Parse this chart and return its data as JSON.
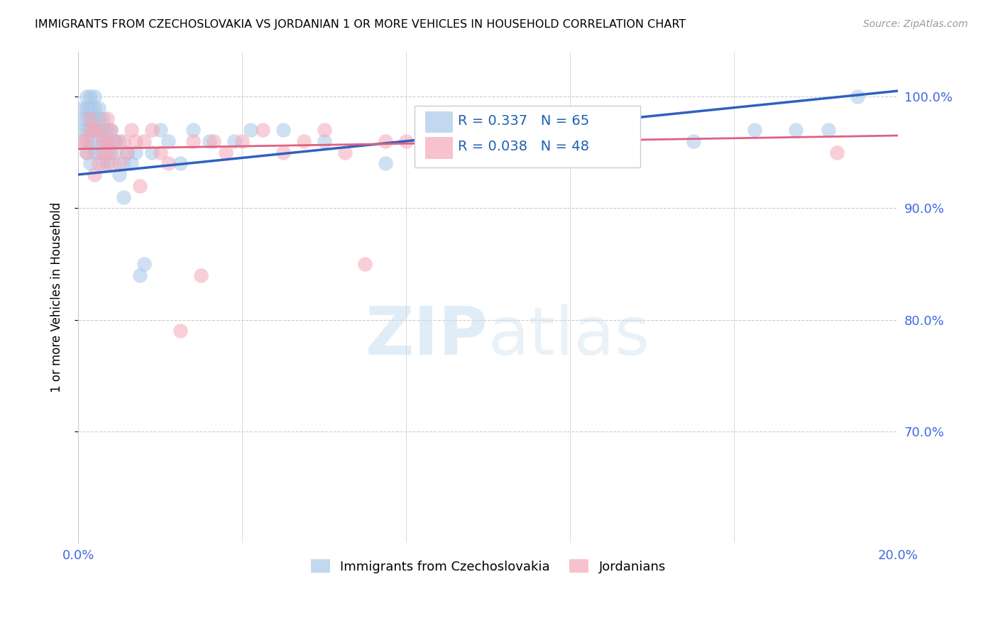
{
  "title": "IMMIGRANTS FROM CZECHOSLOVAKIA VS JORDANIAN 1 OR MORE VEHICLES IN HOUSEHOLD CORRELATION CHART",
  "source": "Source: ZipAtlas.com",
  "ylabel": "1 or more Vehicles in Household",
  "xlim": [
    0.0,
    0.2
  ],
  "ylim": [
    0.6,
    1.04
  ],
  "yticks": [
    0.7,
    0.8,
    0.9,
    1.0
  ],
  "ytick_labels": [
    "70.0%",
    "80.0%",
    "90.0%",
    "100.0%"
  ],
  "xticks": [
    0.0,
    0.04,
    0.08,
    0.12,
    0.16,
    0.2
  ],
  "blue_R": 0.337,
  "blue_N": 65,
  "pink_R": 0.038,
  "pink_N": 48,
  "blue_color": "#a8c8e8",
  "pink_color": "#f4a8b8",
  "blue_line_color": "#3060c0",
  "pink_line_color": "#e06080",
  "legend_label_blue": "Immigrants from Czechoslovakia",
  "legend_label_pink": "Jordanians",
  "blue_scatter_x": [
    0.001,
    0.001,
    0.001,
    0.001,
    0.002,
    0.002,
    0.002,
    0.002,
    0.002,
    0.003,
    0.003,
    0.003,
    0.003,
    0.003,
    0.003,
    0.004,
    0.004,
    0.004,
    0.004,
    0.004,
    0.004,
    0.005,
    0.005,
    0.005,
    0.005,
    0.006,
    0.006,
    0.006,
    0.006,
    0.007,
    0.007,
    0.007,
    0.008,
    0.008,
    0.008,
    0.009,
    0.009,
    0.01,
    0.01,
    0.011,
    0.011,
    0.012,
    0.013,
    0.014,
    0.015,
    0.016,
    0.018,
    0.02,
    0.022,
    0.025,
    0.028,
    0.032,
    0.038,
    0.042,
    0.05,
    0.06,
    0.075,
    0.09,
    0.11,
    0.13,
    0.15,
    0.165,
    0.175,
    0.183,
    0.19
  ],
  "blue_scatter_y": [
    0.96,
    0.97,
    0.98,
    0.99,
    0.95,
    0.97,
    0.98,
    0.99,
    1.0,
    0.94,
    0.96,
    0.97,
    0.98,
    0.99,
    1.0,
    0.95,
    0.96,
    0.97,
    0.98,
    0.99,
    1.0,
    0.95,
    0.97,
    0.98,
    0.99,
    0.94,
    0.96,
    0.97,
    0.98,
    0.95,
    0.96,
    0.97,
    0.94,
    0.96,
    0.97,
    0.95,
    0.96,
    0.93,
    0.96,
    0.91,
    0.94,
    0.95,
    0.94,
    0.95,
    0.84,
    0.85,
    0.95,
    0.97,
    0.96,
    0.94,
    0.97,
    0.96,
    0.96,
    0.97,
    0.97,
    0.96,
    0.94,
    0.96,
    0.96,
    0.95,
    0.96,
    0.97,
    0.97,
    0.97,
    1.0
  ],
  "pink_scatter_x": [
    0.001,
    0.002,
    0.002,
    0.003,
    0.003,
    0.004,
    0.004,
    0.005,
    0.005,
    0.006,
    0.006,
    0.007,
    0.007,
    0.007,
    0.008,
    0.008,
    0.009,
    0.01,
    0.011,
    0.012,
    0.013,
    0.014,
    0.015,
    0.016,
    0.018,
    0.02,
    0.022,
    0.025,
    0.028,
    0.03,
    0.033,
    0.036,
    0.04,
    0.045,
    0.05,
    0.055,
    0.06,
    0.065,
    0.07,
    0.075,
    0.08,
    0.085,
    0.09,
    0.095,
    0.1,
    0.11,
    0.13,
    0.185
  ],
  "pink_scatter_y": [
    0.96,
    0.95,
    0.96,
    0.97,
    0.98,
    0.93,
    0.97,
    0.94,
    0.97,
    0.95,
    0.96,
    0.94,
    0.96,
    0.98,
    0.95,
    0.97,
    0.96,
    0.94,
    0.96,
    0.95,
    0.97,
    0.96,
    0.92,
    0.96,
    0.97,
    0.95,
    0.94,
    0.79,
    0.96,
    0.84,
    0.96,
    0.95,
    0.96,
    0.97,
    0.95,
    0.96,
    0.97,
    0.95,
    0.85,
    0.96,
    0.96,
    0.97,
    0.95,
    0.96,
    0.97,
    0.96,
    0.95,
    0.95
  ],
  "blue_line_x0": 0.0,
  "blue_line_y0": 0.93,
  "blue_line_x1": 0.2,
  "blue_line_y1": 1.005,
  "pink_line_x0": 0.0,
  "pink_line_y0": 0.953,
  "pink_line_x1": 0.2,
  "pink_line_y1": 0.965
}
